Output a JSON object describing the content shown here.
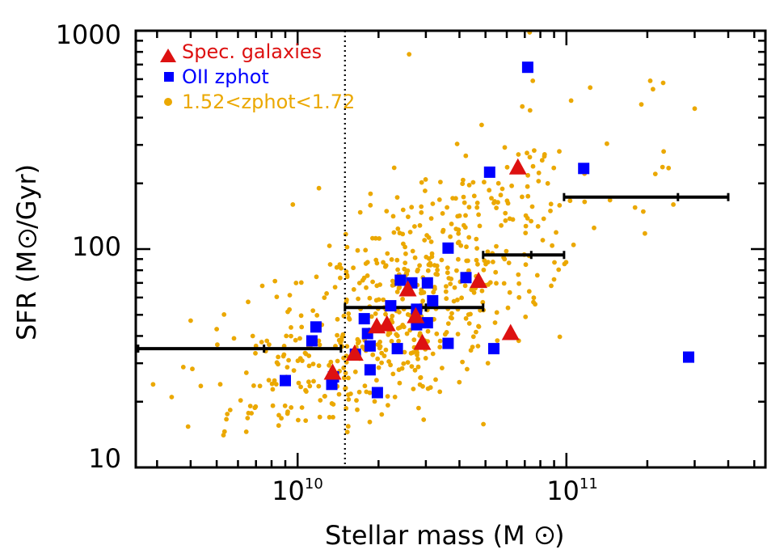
{
  "chart_data": {
    "type": "scatter",
    "xlabel": "Stellar mass (M",
    "xlabel_suffix": ")",
    "ylabel": "SFR (M",
    "ylabel_suffix": "/Gyr)",
    "xscale": "log",
    "yscale": "log",
    "xlim": [
      2500000000.0,
      550000000000.0
    ],
    "ylim": [
      10,
      1000
    ],
    "y_tick_labels": [
      "10",
      "100",
      "1000"
    ],
    "x_tick_labels": [
      {
        "base": "10",
        "exp": "10"
      },
      {
        "base": "10",
        "exp": "11"
      }
    ],
    "vertical_dotted_line_x": 15000000000.0,
    "legend_position": "top-left",
    "colors": {
      "spec": "#dd1111",
      "oii": "#0000ff",
      "zphot": "#eba800",
      "errorbar": "#000000",
      "axis": "#000000"
    },
    "legend": [
      {
        "label": "Spec. galaxies",
        "marker": "triangle",
        "color": "#dd1111"
      },
      {
        "label": "OII zphot",
        "marker": "square",
        "color": "#0000ff"
      },
      {
        "label": "1.52<zphot<1.72",
        "marker": "circle",
        "color": "#eba800"
      }
    ],
    "series": [
      {
        "name": "Spec. galaxies",
        "marker": "triangle",
        "points": [
          [
            13500000000.0,
            27
          ],
          [
            16300000000.0,
            33
          ],
          [
            19700000000.0,
            44
          ],
          [
            21500000000.0,
            45
          ],
          [
            25700000000.0,
            65
          ],
          [
            27500000000.0,
            49
          ],
          [
            29100000000.0,
            37
          ],
          [
            47100000000.0,
            71
          ],
          [
            62000000000.0,
            41
          ],
          [
            66000000000.0,
            235
          ]
        ]
      },
      {
        "name": "OII zphot",
        "marker": "square",
        "points": [
          [
            9000000000.0,
            25
          ],
          [
            11300000000.0,
            38
          ],
          [
            11700000000.0,
            44
          ],
          [
            13400000000.0,
            24
          ],
          [
            13600000000.0,
            26
          ],
          [
            16400000000.0,
            33
          ],
          [
            17700000000.0,
            48
          ],
          [
            18200000000.0,
            41
          ],
          [
            18600000000.0,
            28
          ],
          [
            18600000000.0,
            36
          ],
          [
            19800000000.0,
            22
          ],
          [
            22200000000.0,
            55
          ],
          [
            23500000000.0,
            35
          ],
          [
            24100000000.0,
            72
          ],
          [
            26600000000.0,
            70
          ],
          [
            27700000000.0,
            53
          ],
          [
            27700000000.0,
            45
          ],
          [
            30400000000.0,
            70
          ],
          [
            30400000000.0,
            46
          ],
          [
            31800000000.0,
            58
          ],
          [
            36300000000.0,
            101
          ],
          [
            36300000000.0,
            37
          ],
          [
            42300000000.0,
            74
          ],
          [
            51800000000.0,
            225
          ],
          [
            53700000000.0,
            35
          ],
          [
            71800000000.0,
            680
          ],
          [
            116000000000.0,
            234
          ],
          [
            285000000000.0,
            32
          ]
        ]
      },
      {
        "name": "1.52<zphot<1.72",
        "marker": "circle",
        "generated": true,
        "n": 620,
        "seed": 12345,
        "mass_range": [
          2600000000.0,
          300000000000.0
        ],
        "center_mass": 25000000000.0,
        "center_sfr": 55,
        "slope": 0.7,
        "scatter_dex": 0.26,
        "points": [
          [
            73000000000.0,
            1000
          ],
          [
            26000000000.0,
            780
          ],
          [
            75000000000.0,
            590
          ],
          [
            205000000000.0,
            590
          ],
          [
            210000000000.0,
            540
          ],
          [
            190000000000.0,
            460
          ],
          [
            300000000000.0,
            440
          ],
          [
            230000000000.0,
            280
          ],
          [
            250000000000.0,
            160
          ],
          [
            12000000000.0,
            190
          ],
          [
            2900000000.0,
            24
          ],
          [
            3400000000.0,
            21
          ],
          [
            4000000000.0,
            47
          ],
          [
            5000000000.0,
            43
          ],
          [
            5800000000.0,
            39
          ],
          [
            7000000000.0,
            36
          ],
          [
            8200000000.0,
            25
          ],
          [
            9600000000.0,
            160
          ],
          [
            240000000000.0,
            235
          ],
          [
            180000000000.0,
            155
          ]
        ]
      }
    ],
    "errorbars": [
      {
        "x": 7500000000.0,
        "xerr": [
          2550000000.0,
          14500000000.0
        ],
        "y": 35
      },
      {
        "x": 30000000000.0,
        "xerr": [
          15000000000.0,
          49000000000.0
        ],
        "y": 54
      },
      {
        "x": 74000000000.0,
        "xerr": [
          49000000000.0,
          98000000000.0
        ],
        "y": 94
      },
      {
        "x": 260000000000.0,
        "xerr": [
          98000000000.0,
          400000000000.0
        ],
        "y": 173
      }
    ]
  }
}
